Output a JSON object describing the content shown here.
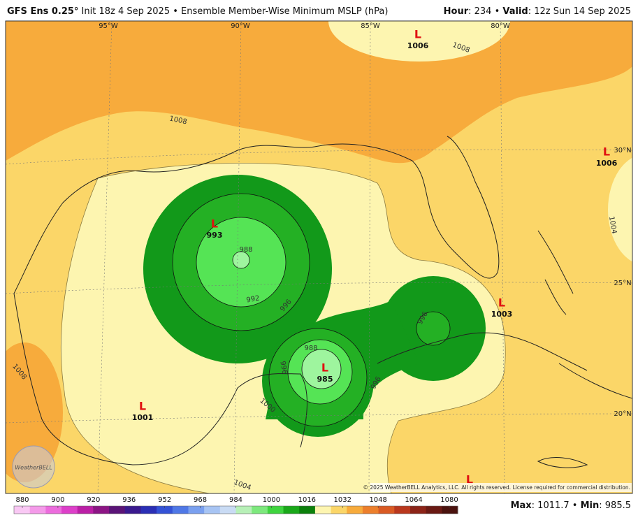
{
  "header": {
    "left_parts": [
      {
        "text": "GFS Ens 0.25°",
        "bold": true
      },
      {
        "text": " Init 18z 4 Sep 2025 • Ensemble Member-Wise Minimum MSLP (hPa)",
        "bold": false
      }
    ],
    "right_parts": [
      {
        "text": "Hour",
        "bold": true
      },
      {
        "text": ": 234 • ",
        "bold": false
      },
      {
        "text": "Valid",
        "bold": true
      },
      {
        "text": ": 12z Sun 14 Sep 2025",
        "bold": false
      }
    ]
  },
  "map": {
    "lows": [
      {
        "symbol": "L",
        "value": "1006"
      },
      {
        "symbol": "L",
        "value": "1006"
      },
      {
        "symbol": "L",
        "value": "993"
      },
      {
        "symbol": "L",
        "value": "1003"
      },
      {
        "symbol": "L",
        "value": "985"
      },
      {
        "symbol": "L",
        "value": "1001"
      },
      {
        "symbol": "L"
      }
    ],
    "contour_labels": [
      "1008",
      "1008",
      "1004",
      "988",
      "992",
      "996",
      "996",
      "988",
      "996",
      "996",
      "1000",
      "1008",
      "1004"
    ],
    "grid_labels": [
      "95°W",
      "90°W",
      "85°W",
      "80°W",
      "30°N",
      "25°N",
      "20°N"
    ],
    "copyright": "© 2025 WeatherBELL Analytics, LLC. All rights reserved. License required for commercial distribution.",
    "logo": "WeatherBELL"
  },
  "colorbar": {
    "ticks": [
      880,
      900,
      920,
      936,
      952,
      968,
      984,
      1000,
      1016,
      1032,
      1048,
      1064,
      1080
    ],
    "colors": [
      "#f9c8f4",
      "#f49ae9",
      "#ec6cdd",
      "#dd3fc9",
      "#bb1fa6",
      "#8c1585",
      "#5a1477",
      "#3a1a8e",
      "#2b2fb5",
      "#3452d6",
      "#4f78e6",
      "#7aa0ef",
      "#a7c4f3",
      "#c9dbf4",
      "#b7f0b7",
      "#7de87d",
      "#3fd43f",
      "#1aa81a",
      "#0c800c",
      "#fdf5b0",
      "#fbd668",
      "#f7ab3c",
      "#ec7f2c",
      "#d95a24",
      "#b9381e",
      "#8c2418",
      "#6a1a14",
      "#4a120e"
    ]
  },
  "footer": {
    "parts": [
      {
        "text": "Max",
        "bold": true
      },
      {
        "text": ": 1011.7 • ",
        "bold": false
      },
      {
        "text": "Min",
        "bold": true
      },
      {
        "text": ": 985.5",
        "bold": false
      }
    ]
  }
}
